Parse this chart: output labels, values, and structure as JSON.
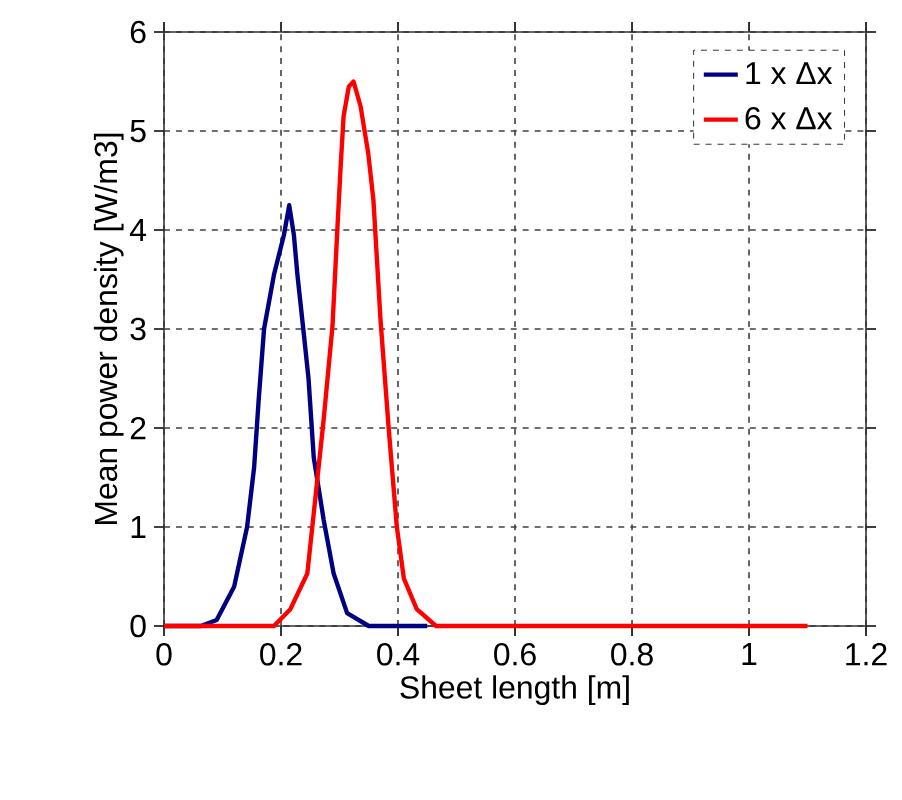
{
  "chart_data": {
    "type": "line",
    "xlabel": "Sheet length [m]",
    "ylabel": "Mean power density [W/m3]",
    "xlim": [
      0,
      1.2
    ],
    "ylim": [
      0,
      6
    ],
    "xticks": [
      0,
      0.2,
      0.4,
      0.6,
      0.8,
      1,
      1.2
    ],
    "yticks": [
      0,
      1,
      2,
      3,
      4,
      5,
      6
    ],
    "grid": true,
    "legend": "top right",
    "marker": "none",
    "line_style": "solid",
    "series": [
      {
        "name": "1 x Δx",
        "color": "#000080",
        "x": [
          0,
          0.063,
          0.09,
          0.12,
          0.142,
          0.154,
          0.162,
          0.171,
          0.188,
          0.205,
          0.214,
          0.222,
          0.228,
          0.239,
          0.247,
          0.256,
          0.273,
          0.29,
          0.313,
          0.35,
          0.45
        ],
        "values": [
          0,
          0,
          0.06,
          0.4,
          1.0,
          1.6,
          2.3,
          3.0,
          3.55,
          3.95,
          4.25,
          3.95,
          3.55,
          2.95,
          2.5,
          1.7,
          1.07,
          0.53,
          0.13,
          0,
          0
        ]
      },
      {
        "name": "6 x Δx",
        "color": "#ff0000",
        "x": [
          0,
          0.188,
          0.216,
          0.245,
          0.256,
          0.273,
          0.288,
          0.296,
          0.302,
          0.307,
          0.316,
          0.324,
          0.336,
          0.349,
          0.358,
          0.37,
          0.384,
          0.398,
          0.41,
          0.432,
          0.465,
          1.1
        ],
        "values": [
          0,
          0,
          0.17,
          0.53,
          1.14,
          2.09,
          3.03,
          3.97,
          4.65,
          5.15,
          5.45,
          5.5,
          5.25,
          4.78,
          4.3,
          3.1,
          2.0,
          1.0,
          0.48,
          0.17,
          0,
          0
        ]
      }
    ]
  }
}
